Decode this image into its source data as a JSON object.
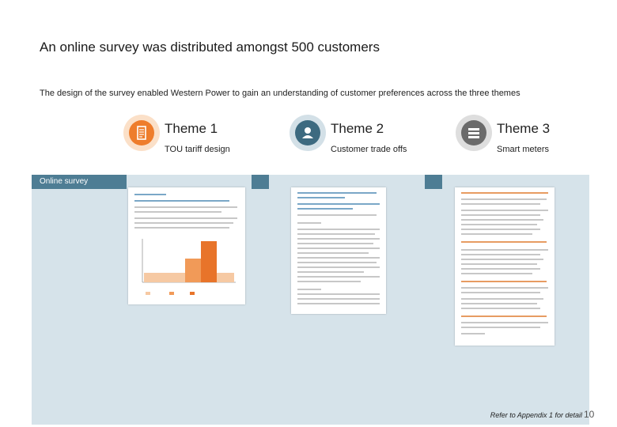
{
  "title": "An online survey was distributed amongst 500 customers",
  "subtitle": "The design of the survey enabled Western Power to gain an understanding of customer preferences across the three themes",
  "themes": [
    {
      "name": "Theme 1",
      "sub": "TOU tariff design",
      "icon": "document-icon",
      "color": "#ee7d2c"
    },
    {
      "name": "Theme 2",
      "sub": "Customer trade offs",
      "icon": "person-icon",
      "color": "#3d6a80"
    },
    {
      "name": "Theme 3",
      "sub": "Smart meters",
      "icon": "meter-icon",
      "color": "#6b6b6b"
    }
  ],
  "band_label": "Online survey",
  "footnote": "Refer to Appendix 1 for detail",
  "page_number": "10"
}
